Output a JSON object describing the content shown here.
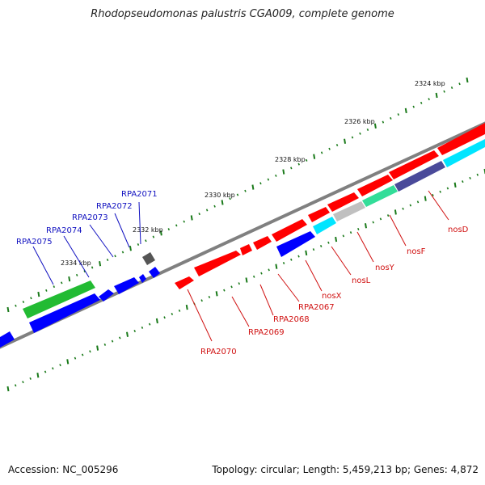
{
  "title": "Rhodopseudomonas palustris CGA009, complete genome",
  "footer": {
    "accession": "Accession: NC_005296",
    "topology": "Topology: circular; Length: 5,459,213 bp; Genes: 4,872"
  },
  "kbp_labels": [
    "2324 kbp",
    "2326 kbp",
    "2328 kbp",
    "2330 kbp",
    "2332 kbp",
    "2334 kbp"
  ],
  "gene_labels_blue": [
    "RPA2075",
    "RPA2074",
    "RPA2073",
    "RPA2072",
    "RPA2071"
  ],
  "gene_labels_red": [
    "RPA2070",
    "RPA2069",
    "RPA2068",
    "RPA2067",
    "nosX",
    "nosL",
    "nosY",
    "nosF",
    "nosD"
  ],
  "colors": {
    "forward_cds": "#ff0000",
    "reverse_cds": "#0000ff",
    "rna": "#22bb33",
    "nos_cyan": "#00e5ff",
    "nos_grey": "#c0c0c0",
    "nos_teal": "#33dd99",
    "nos_navy": "#4a4a9a",
    "pseudo": "#555555",
    "backbone": "#808080",
    "tick": "#1a7a1a"
  }
}
